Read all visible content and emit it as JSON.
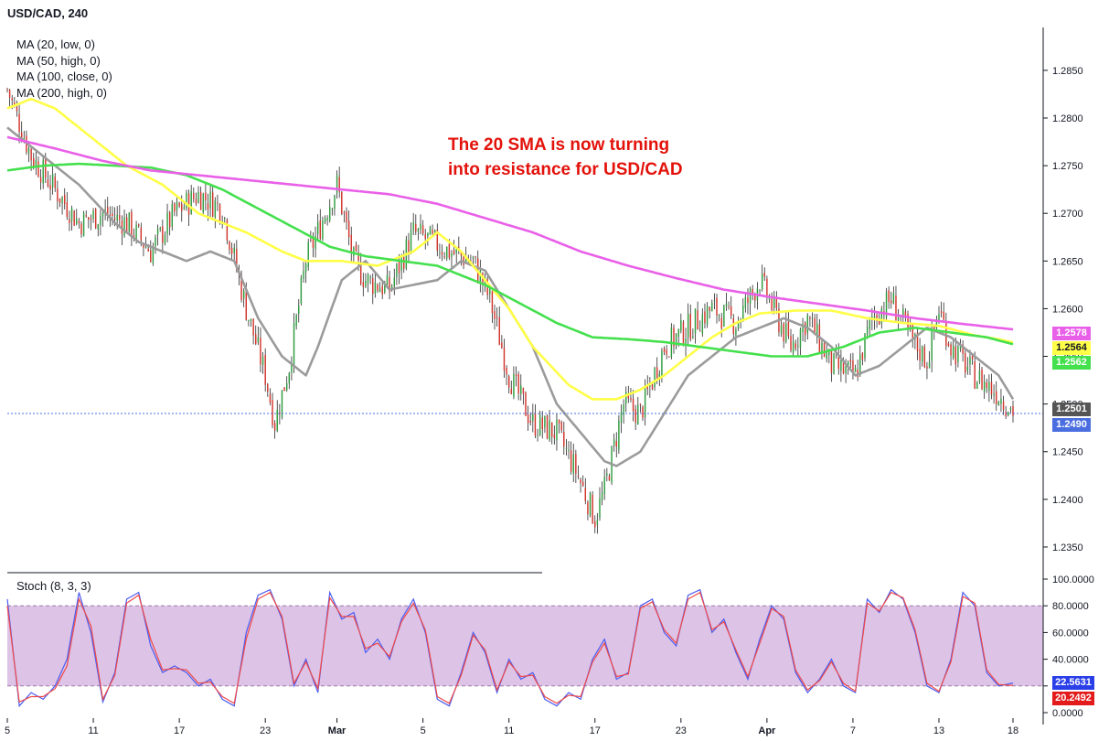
{
  "header": {
    "title": "USD/CAD, 240"
  },
  "ma_legend": [
    {
      "label": "MA (20, low, 0)",
      "color": "#9b9b9b"
    },
    {
      "label": "MA (50, high, 0)",
      "color": "#ffff47"
    },
    {
      "label": "MA (100, close, 0)",
      "color": "#44e04d"
    },
    {
      "label": "MA (200, high, 0)",
      "color": "#e960e8"
    }
  ],
  "annotation": {
    "line1": "The 20 SMA is now turning",
    "line2": "into resistance for USD/CAD"
  },
  "stoch": {
    "title": "Stoch (8, 3, 3)",
    "band": [
      20,
      80
    ],
    "colors": {
      "k": "#4a5cf0",
      "d": "#f04848",
      "band_fill": "#d9bde3"
    }
  },
  "colors": {
    "up": "#2e9b3f",
    "down": "#d2342b",
    "grid": "#e0e3eb",
    "last_price": "#4a6ee0"
  },
  "price_tags": [
    {
      "label": "1.2578",
      "bg": "#e960e8",
      "fg": "#ffffff"
    },
    {
      "label": "1.2564",
      "bg": "#ffff47",
      "fg": "#131722"
    },
    {
      "label": "1.2562",
      "bg": "#44e04d",
      "fg": "#ffffff"
    },
    {
      "label": "1.2501",
      "bg": "#555555",
      "fg": "#ffffff"
    },
    {
      "label": "1.2490",
      "bg": "#4a6ee0",
      "fg": "#ffffff"
    },
    {
      "label": "22.5631",
      "bg": "#2b3fe8",
      "fg": "#ffffff"
    },
    {
      "label": "20.2492",
      "bg": "#e31b1b",
      "fg": "#ffffff"
    }
  ],
  "chart_data": {
    "type": "line",
    "title": "USD/CAD, 240",
    "price_axis": {
      "ylim": [
        1.2325,
        1.2895
      ],
      "ticks": [
        1.235,
        1.24,
        1.245,
        1.25,
        1.255,
        1.26,
        1.265,
        1.27,
        1.275,
        1.28,
        1.285
      ],
      "tick_labels": [
        "1.2350",
        "1.2400",
        "1.2450",
        "1.2500",
        "1.2550",
        "1.2600",
        "1.2650",
        "1.2700",
        "1.2750",
        "1.2800",
        "1.2850"
      ]
    },
    "stoch_axis": {
      "ylim": [
        0,
        100
      ],
      "ticks": [
        0,
        20,
        40,
        60,
        80,
        100
      ],
      "tick_labels": [
        "0.0000",
        "20.0000",
        "40.0000",
        "60.0000",
        "80.0000",
        "100.0000"
      ]
    },
    "x_axis": {
      "labels": [
        "5",
        "11",
        "17",
        "23",
        "Mar",
        "5",
        "11",
        "17",
        "23",
        "Apr",
        "7",
        "13",
        "18"
      ],
      "bars": [
        0,
        36,
        72,
        108,
        138,
        174,
        210,
        246,
        282,
        318,
        354,
        390,
        421
      ]
    },
    "last_price": 1.249,
    "price_series": {
      "bar_index": [
        0,
        10,
        20,
        30,
        40,
        50,
        60,
        70,
        80,
        90,
        100,
        108,
        112,
        118,
        125,
        138,
        145,
        150,
        160,
        170,
        178,
        185,
        195,
        202,
        210,
        220,
        230,
        238,
        246,
        250,
        258,
        265,
        275,
        285,
        295,
        305,
        315,
        328,
        335,
        345,
        355,
        362,
        370,
        378,
        385,
        390,
        395,
        405,
        415,
        422
      ],
      "close": [
        1.283,
        1.276,
        1.2725,
        1.269,
        1.27,
        1.269,
        1.266,
        1.27,
        1.272,
        1.2705,
        1.26,
        1.253,
        1.248,
        1.254,
        1.265,
        1.273,
        1.265,
        1.263,
        1.262,
        1.268,
        1.267,
        1.266,
        1.265,
        1.261,
        1.253,
        1.248,
        1.247,
        1.243,
        1.238,
        1.241,
        1.25,
        1.249,
        1.256,
        1.258,
        1.26,
        1.2585,
        1.263,
        1.256,
        1.259,
        1.254,
        1.253,
        1.259,
        1.261,
        1.257,
        1.2545,
        1.26,
        1.256,
        1.253,
        1.251,
        1.249
      ]
    },
    "series": [
      {
        "name": "MA (20, low, 0)",
        "bar_index": [
          0,
          15,
          30,
          45,
          55,
          65,
          75,
          85,
          95,
          105,
          115,
          125,
          130,
          140,
          150,
          160,
          170,
          180,
          190,
          200,
          210,
          220,
          230,
          240,
          250,
          255,
          265,
          275,
          285,
          295,
          305,
          315,
          325,
          335,
          345,
          355,
          365,
          375,
          385,
          395,
          405,
          415,
          422
        ],
        "values": [
          1.279,
          1.276,
          1.273,
          1.269,
          1.267,
          1.266,
          1.265,
          1.266,
          1.265,
          1.259,
          1.255,
          1.253,
          1.256,
          1.263,
          1.265,
          1.262,
          1.2625,
          1.263,
          1.265,
          1.264,
          1.26,
          1.256,
          1.25,
          1.247,
          1.244,
          1.2435,
          1.245,
          1.249,
          1.253,
          1.255,
          1.257,
          1.258,
          1.259,
          1.258,
          1.256,
          1.253,
          1.254,
          1.256,
          1.258,
          1.257,
          1.255,
          1.253,
          1.2501
        ]
      },
      {
        "name": "MA (50, high, 0)",
        "bar_index": [
          0,
          10,
          20,
          35,
          50,
          65,
          80,
          100,
          115,
          125,
          140,
          155,
          170,
          180,
          190,
          200,
          210,
          220,
          235,
          245,
          255,
          265,
          275,
          285,
          295,
          305,
          315,
          330,
          345,
          360,
          375,
          390,
          405,
          415,
          422
        ],
        "values": [
          1.281,
          1.282,
          1.281,
          1.278,
          1.275,
          1.273,
          1.27,
          1.268,
          1.266,
          1.265,
          1.265,
          1.2645,
          1.266,
          1.268,
          1.266,
          1.263,
          1.26,
          1.256,
          1.252,
          1.2505,
          1.2505,
          1.2515,
          1.253,
          1.255,
          1.257,
          1.2585,
          1.2595,
          1.2598,
          1.2598,
          1.259,
          1.2585,
          1.2582,
          1.2572,
          1.2568,
          1.2564
        ]
      },
      {
        "name": "MA (100, close, 0)",
        "bar_index": [
          0,
          15,
          30,
          45,
          60,
          75,
          90,
          105,
          120,
          135,
          150,
          165,
          180,
          200,
          215,
          230,
          245,
          260,
          275,
          290,
          305,
          320,
          335,
          350,
          365,
          380,
          395,
          410,
          422
        ],
        "values": [
          1.2745,
          1.275,
          1.2752,
          1.275,
          1.2748,
          1.274,
          1.2725,
          1.2705,
          1.2685,
          1.2665,
          1.2655,
          1.265,
          1.2645,
          1.2625,
          1.2605,
          1.2585,
          1.257,
          1.2568,
          1.2565,
          1.256,
          1.2555,
          1.255,
          1.255,
          1.256,
          1.2575,
          1.258,
          1.2575,
          1.257,
          1.2562
        ]
      },
      {
        "name": "MA (200, high, 0)",
        "bar_index": [
          0,
          20,
          40,
          60,
          80,
          100,
          120,
          140,
          160,
          180,
          200,
          220,
          240,
          260,
          280,
          300,
          320,
          340,
          360,
          380,
          400,
          422
        ],
        "values": [
          1.278,
          1.2768,
          1.2755,
          1.2745,
          1.274,
          1.2735,
          1.273,
          1.2725,
          1.272,
          1.271,
          1.2695,
          1.268,
          1.266,
          1.2645,
          1.2632,
          1.262,
          1.2612,
          1.2605,
          1.2598,
          1.259,
          1.2584,
          1.2578
        ]
      }
    ],
    "stoch_series": [
      {
        "name": "%K",
        "bar_index": [
          0,
          5,
          10,
          15,
          20,
          25,
          30,
          35,
          40,
          45,
          50,
          55,
          60,
          65,
          70,
          75,
          80,
          85,
          90,
          95,
          100,
          105,
          110,
          115,
          120,
          125,
          130,
          135,
          140,
          145,
          150,
          155,
          160,
          165,
          170,
          175,
          180,
          185,
          190,
          195,
          200,
          205,
          210,
          215,
          220,
          225,
          230,
          235,
          240,
          245,
          250,
          255,
          260,
          265,
          270,
          275,
          280,
          285,
          290,
          295,
          300,
          305,
          310,
          315,
          320,
          325,
          330,
          335,
          340,
          345,
          350,
          355,
          360,
          365,
          370,
          375,
          380,
          385,
          390,
          395,
          400,
          405,
          410,
          415,
          422
        ],
        "values": [
          85,
          5,
          15,
          10,
          20,
          40,
          90,
          60,
          8,
          30,
          85,
          90,
          50,
          30,
          35,
          30,
          20,
          25,
          10,
          5,
          60,
          88,
          92,
          70,
          20,
          40,
          15,
          90,
          70,
          75,
          45,
          55,
          40,
          70,
          85,
          60,
          10,
          5,
          30,
          60,
          45,
          15,
          40,
          25,
          30,
          10,
          5,
          15,
          10,
          40,
          55,
          25,
          30,
          80,
          85,
          60,
          50,
          88,
          92,
          60,
          70,
          45,
          25,
          55,
          80,
          70,
          30,
          15,
          25,
          40,
          20,
          15,
          85,
          75,
          92,
          85,
          60,
          20,
          15,
          40,
          90,
          80,
          30,
          20,
          22.5631
        ]
      },
      {
        "name": "%D",
        "bar_index": [
          0,
          5,
          10,
          15,
          20,
          25,
          30,
          35,
          40,
          45,
          50,
          55,
          60,
          65,
          70,
          75,
          80,
          85,
          90,
          95,
          100,
          105,
          110,
          115,
          120,
          125,
          130,
          135,
          140,
          145,
          150,
          155,
          160,
          165,
          170,
          175,
          180,
          185,
          190,
          195,
          200,
          205,
          210,
          215,
          220,
          225,
          230,
          235,
          240,
          245,
          250,
          255,
          260,
          265,
          270,
          275,
          280,
          285,
          290,
          295,
          300,
          305,
          310,
          315,
          320,
          325,
          330,
          335,
          340,
          345,
          350,
          355,
          360,
          365,
          370,
          375,
          380,
          385,
          390,
          395,
          400,
          405,
          410,
          415,
          422
        ],
        "values": [
          80,
          8,
          12,
          12,
          18,
          35,
          85,
          65,
          10,
          28,
          82,
          88,
          55,
          32,
          33,
          32,
          22,
          23,
          12,
          7,
          55,
          85,
          90,
          72,
          22,
          38,
          18,
          86,
          72,
          72,
          48,
          52,
          42,
          68,
          82,
          62,
          12,
          7,
          28,
          58,
          47,
          17,
          38,
          27,
          28,
          12,
          7,
          13,
          12,
          38,
          52,
          27,
          29,
          78,
          83,
          62,
          52,
          85,
          90,
          62,
          68,
          47,
          27,
          52,
          78,
          72,
          32,
          17,
          24,
          38,
          22,
          16,
          82,
          76,
          90,
          86,
          62,
          22,
          16,
          38,
          87,
          82,
          32,
          21,
          20.2492
        ]
      }
    ]
  }
}
